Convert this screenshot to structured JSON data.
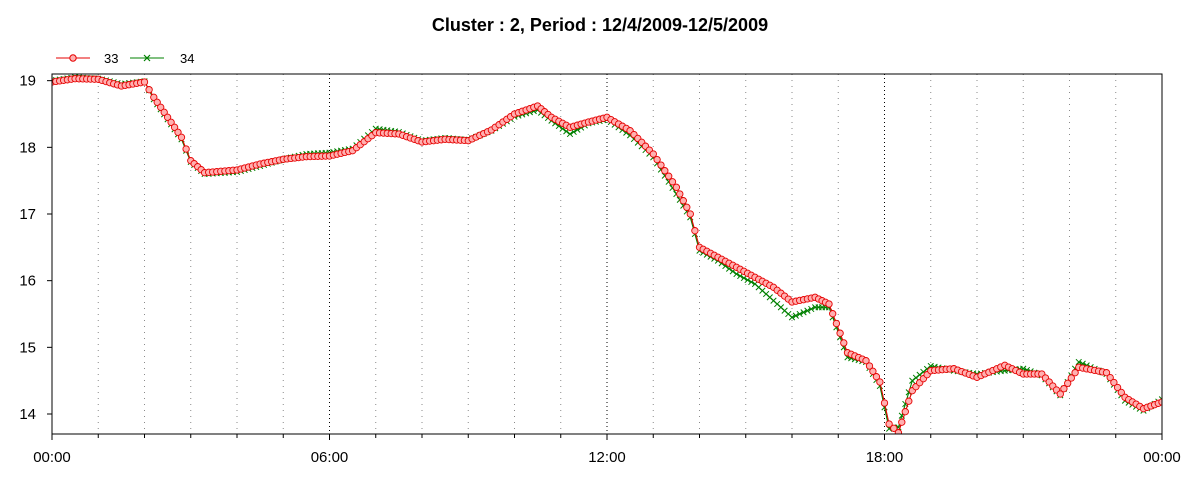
{
  "chart_data": {
    "type": "line",
    "title": "Cluster : 2, Period : 12/4/2009-12/5/2009",
    "xlabel": "",
    "ylabel": "",
    "x_ticks": [
      {
        "hour": 0,
        "label": "00:00"
      },
      {
        "hour": 6,
        "label": "06:00"
      },
      {
        "hour": 12,
        "label": "12:00"
      },
      {
        "hour": 18,
        "label": "18:00"
      },
      {
        "hour": 24,
        "label": "00:00"
      }
    ],
    "y_ticks": [
      14,
      15,
      16,
      17,
      18,
      19
    ],
    "xlim": [
      0,
      24
    ],
    "ylim": [
      13.7,
      19.1
    ],
    "grid": "dotted vertical at 1 h, hourly major every 6 h",
    "legend_placement": "top-left",
    "x_unit": "hour",
    "series": [
      {
        "name": "33",
        "color": "#e60000",
        "marker": "circle",
        "points": [
          [
            0,
            18.98
          ],
          [
            0.5,
            19.03
          ],
          [
            1.0,
            19.02
          ],
          [
            1.5,
            18.92
          ],
          [
            2.0,
            18.98
          ],
          [
            2.2,
            18.75
          ],
          [
            2.5,
            18.45
          ],
          [
            2.8,
            18.15
          ],
          [
            3.0,
            17.8
          ],
          [
            3.3,
            17.62
          ],
          [
            4.0,
            17.66
          ],
          [
            4.5,
            17.75
          ],
          [
            5.0,
            17.82
          ],
          [
            5.5,
            17.86
          ],
          [
            6.0,
            17.87
          ],
          [
            6.5,
            17.95
          ],
          [
            7.0,
            18.22
          ],
          [
            7.5,
            18.2
          ],
          [
            8.0,
            18.08
          ],
          [
            8.5,
            18.12
          ],
          [
            9.0,
            18.1
          ],
          [
            9.5,
            18.26
          ],
          [
            10.0,
            18.5
          ],
          [
            10.5,
            18.62
          ],
          [
            10.8,
            18.45
          ],
          [
            11.2,
            18.3
          ],
          [
            11.6,
            18.38
          ],
          [
            12.0,
            18.45
          ],
          [
            12.5,
            18.25
          ],
          [
            13.0,
            17.9
          ],
          [
            13.5,
            17.4
          ],
          [
            13.8,
            17.0
          ],
          [
            14.0,
            16.5
          ],
          [
            14.4,
            16.35
          ],
          [
            14.8,
            16.2
          ],
          [
            15.2,
            16.05
          ],
          [
            15.6,
            15.9
          ],
          [
            16.0,
            15.68
          ],
          [
            16.5,
            15.75
          ],
          [
            16.8,
            15.65
          ],
          [
            17.2,
            14.92
          ],
          [
            17.6,
            14.8
          ],
          [
            17.9,
            14.48
          ],
          [
            18.1,
            13.85
          ],
          [
            18.3,
            13.72
          ],
          [
            18.6,
            14.35
          ],
          [
            19.0,
            14.65
          ],
          [
            19.5,
            14.68
          ],
          [
            20.0,
            14.55
          ],
          [
            20.6,
            14.73
          ],
          [
            21.0,
            14.6
          ],
          [
            21.4,
            14.6
          ],
          [
            21.8,
            14.3
          ],
          [
            22.2,
            14.7
          ],
          [
            22.8,
            14.62
          ],
          [
            23.2,
            14.25
          ],
          [
            23.6,
            14.08
          ],
          [
            24.0,
            14.18
          ]
        ]
      },
      {
        "name": "34",
        "color": "#008000",
        "marker": "x",
        "points": [
          [
            0,
            19.0
          ],
          [
            0.5,
            19.05
          ],
          [
            1.0,
            19.03
          ],
          [
            1.5,
            18.95
          ],
          [
            2.0,
            18.99
          ],
          [
            2.2,
            18.72
          ],
          [
            2.5,
            18.42
          ],
          [
            2.8,
            18.12
          ],
          [
            3.0,
            17.78
          ],
          [
            3.3,
            17.6
          ],
          [
            4.0,
            17.63
          ],
          [
            4.5,
            17.72
          ],
          [
            5.0,
            17.82
          ],
          [
            5.5,
            17.9
          ],
          [
            6.0,
            17.92
          ],
          [
            6.5,
            17.98
          ],
          [
            7.0,
            18.28
          ],
          [
            7.5,
            18.23
          ],
          [
            8.0,
            18.1
          ],
          [
            8.5,
            18.14
          ],
          [
            9.0,
            18.11
          ],
          [
            9.5,
            18.25
          ],
          [
            10.0,
            18.46
          ],
          [
            10.5,
            18.56
          ],
          [
            10.8,
            18.4
          ],
          [
            11.2,
            18.2
          ],
          [
            11.6,
            18.36
          ],
          [
            12.0,
            18.42
          ],
          [
            12.5,
            18.18
          ],
          [
            13.0,
            17.85
          ],
          [
            13.5,
            17.3
          ],
          [
            13.8,
            16.95
          ],
          [
            14.0,
            16.45
          ],
          [
            14.4,
            16.3
          ],
          [
            14.8,
            16.1
          ],
          [
            15.2,
            15.95
          ],
          [
            15.6,
            15.7
          ],
          [
            16.0,
            15.45
          ],
          [
            16.5,
            15.6
          ],
          [
            16.8,
            15.6
          ],
          [
            17.2,
            14.85
          ],
          [
            17.6,
            14.78
          ],
          [
            17.9,
            14.42
          ],
          [
            18.1,
            13.78
          ],
          [
            18.3,
            13.8
          ],
          [
            18.6,
            14.5
          ],
          [
            19.0,
            14.72
          ],
          [
            19.5,
            14.65
          ],
          [
            20.0,
            14.6
          ],
          [
            20.6,
            14.65
          ],
          [
            21.0,
            14.68
          ],
          [
            21.4,
            14.58
          ],
          [
            21.8,
            14.28
          ],
          [
            22.2,
            14.78
          ],
          [
            22.8,
            14.6
          ],
          [
            23.2,
            14.2
          ],
          [
            23.6,
            14.05
          ],
          [
            24.0,
            14.22
          ]
        ]
      }
    ]
  }
}
